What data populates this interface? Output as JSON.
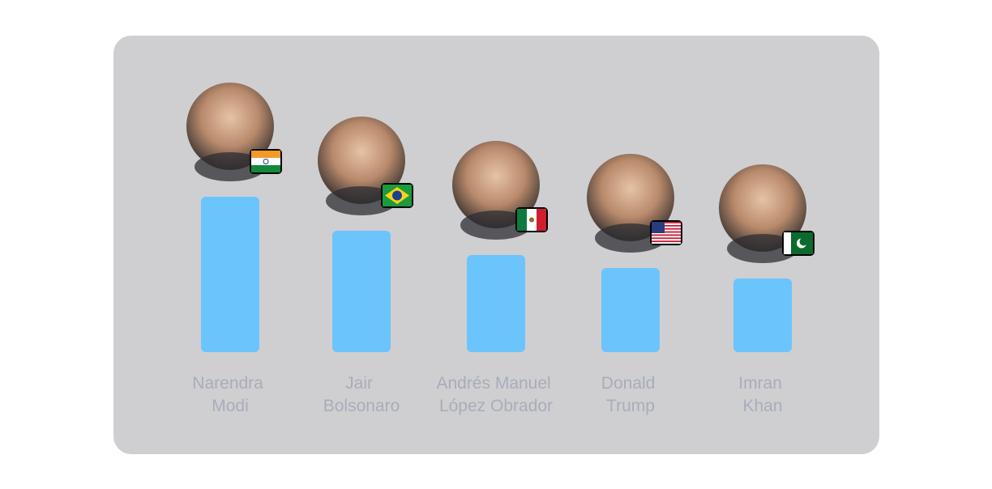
{
  "chart_data": {
    "type": "bar",
    "categories": [
      "Narendra Modi",
      "Jair Bolsonaro",
      "Andrés Manuel López Obrador",
      "Donald Trump",
      "Imran Khan"
    ],
    "values": [
      192,
      150,
      120,
      104,
      91
    ],
    "color": "#6cc4fd"
  }
}
